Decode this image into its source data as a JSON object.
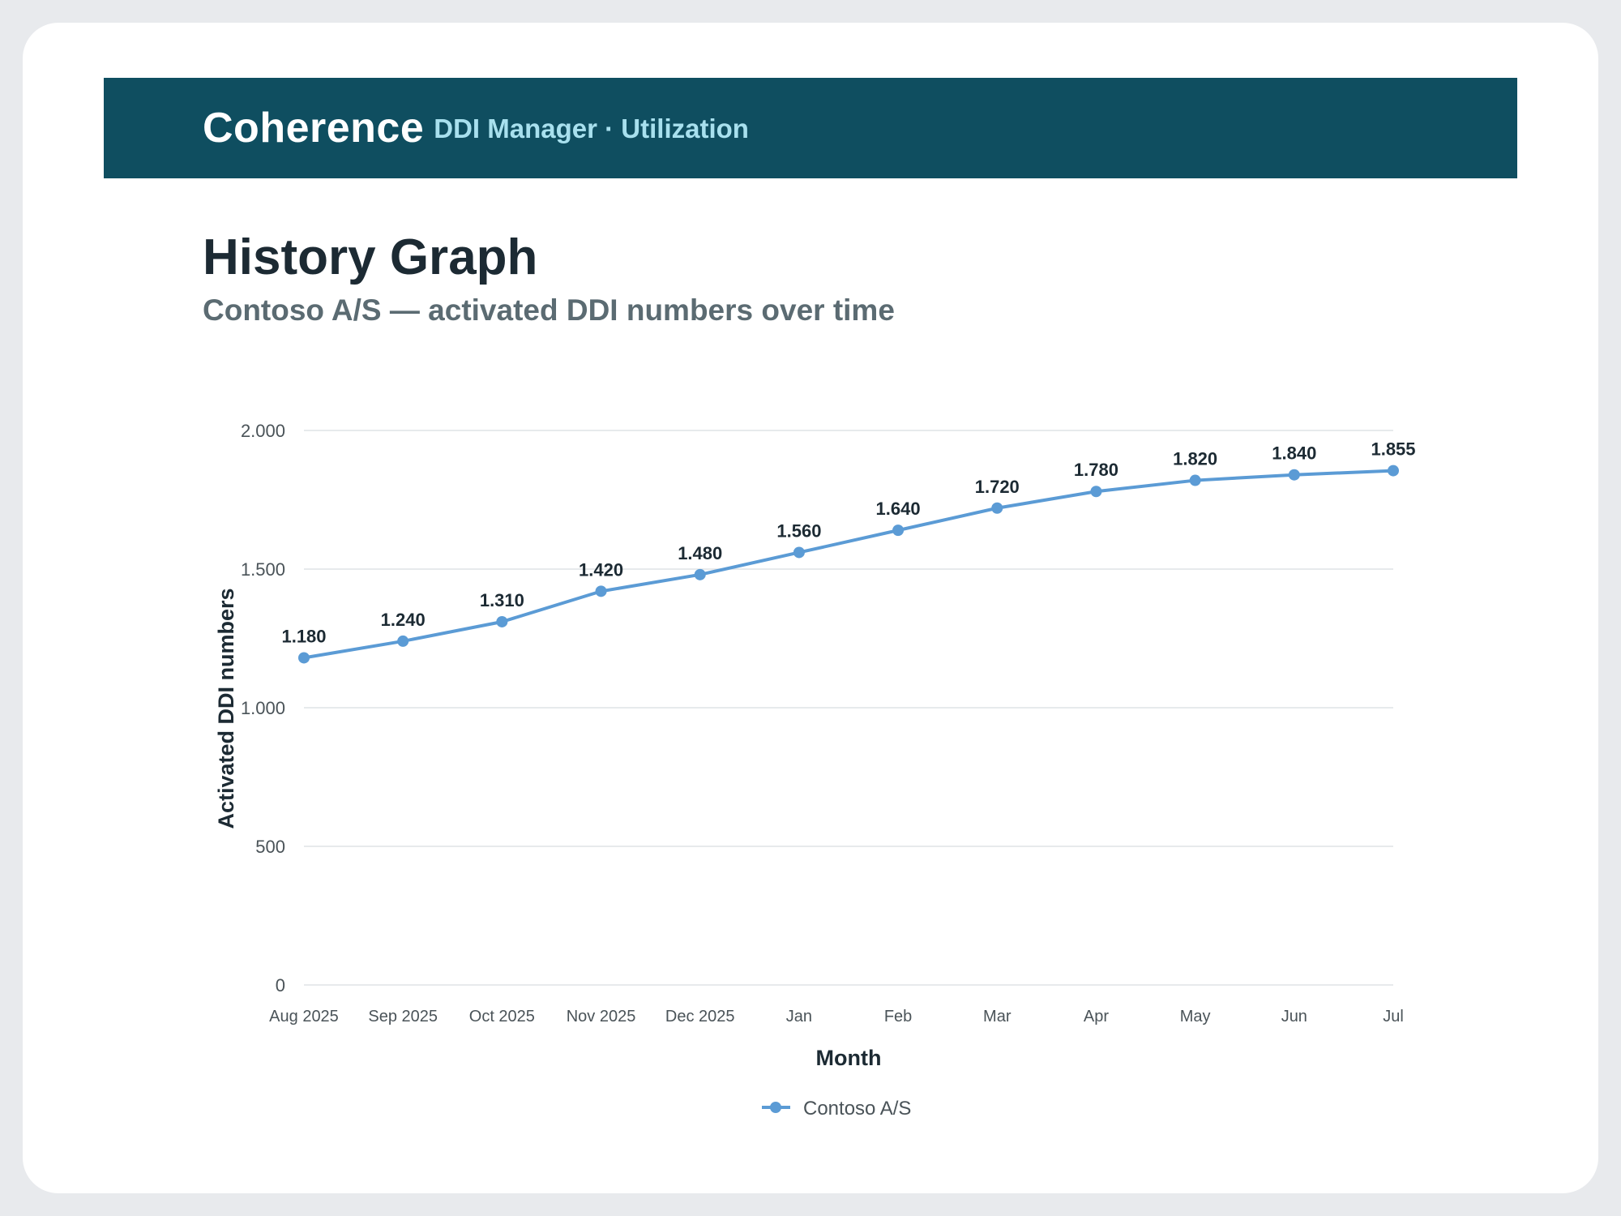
{
  "header": {
    "brand": "Coherence",
    "subtitle": "DDI Manager · Utilization"
  },
  "page": {
    "title": "History Graph",
    "subtitle": "Contoso A/S — activated DDI numbers over time"
  },
  "colors": {
    "banner": "#0f4e60",
    "series": "#5b9bd5"
  },
  "chart_data": {
    "type": "line",
    "title": "",
    "xlabel": "Month",
    "ylabel": "Activated DDI numbers",
    "ylim": [
      0,
      2000
    ],
    "yticks": [
      0,
      500,
      1000,
      1500,
      2000
    ],
    "ytick_labels": [
      "0",
      "500",
      "1.000",
      "1.500",
      "2.000"
    ],
    "grid": true,
    "legend": "bottom-center",
    "categories": [
      "Aug 2025",
      "Sep 2025",
      "Oct 2025",
      "Nov 2025",
      "Dec 2025",
      "Jan",
      "Feb",
      "Mar",
      "Apr",
      "May",
      "Jun",
      "Jul"
    ],
    "series": [
      {
        "name": "Contoso A/S",
        "values": [
          1180,
          1240,
          1310,
          1420,
          1480,
          1560,
          1640,
          1720,
          1780,
          1820,
          1840,
          1855
        ],
        "labels": [
          "1.180",
          "1.240",
          "1.310",
          "1.420",
          "1.480",
          "1.560",
          "1.640",
          "1.720",
          "1.780",
          "1.820",
          "1.840",
          "1.855"
        ]
      }
    ]
  }
}
